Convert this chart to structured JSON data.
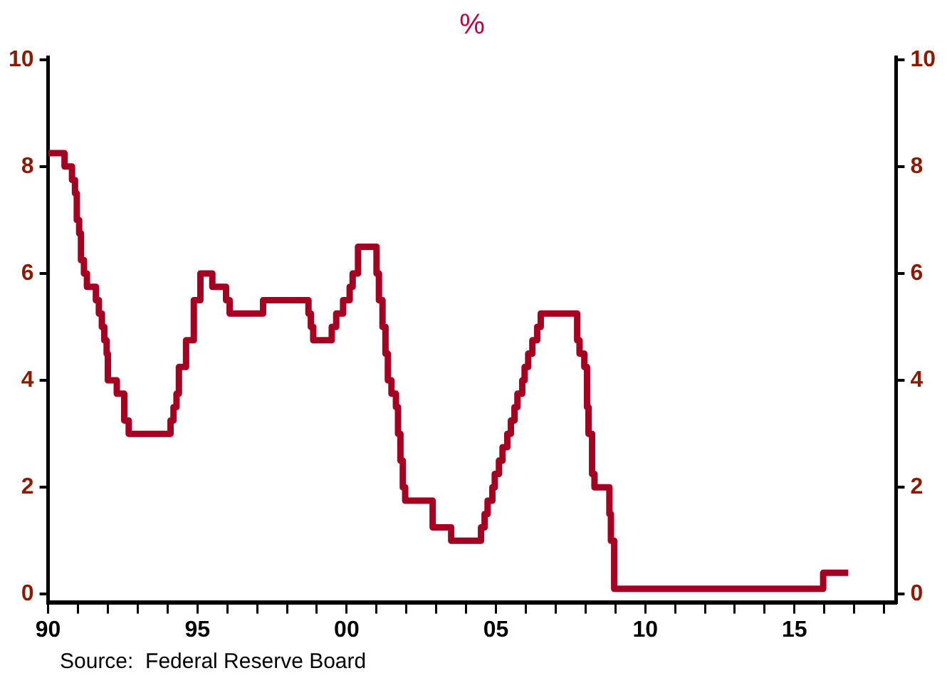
{
  "chart_data": {
    "type": "step",
    "title": "%",
    "x": [
      1990.0,
      1990.55,
      1990.8,
      1990.9,
      1990.96,
      1991.04,
      1991.1,
      1991.2,
      1991.3,
      1991.6,
      1991.7,
      1991.8,
      1991.88,
      1991.96,
      1992.0,
      1992.3,
      1992.55,
      1992.7,
      1994.1,
      1994.2,
      1994.3,
      1994.38,
      1994.62,
      1994.88,
      1995.1,
      1995.5,
      1995.96,
      1996.08,
      1997.2,
      1998.72,
      1998.8,
      1998.88,
      1999.5,
      1999.65,
      1999.88,
      2000.1,
      2000.2,
      2000.38,
      2001.0,
      2001.08,
      2001.2,
      2001.3,
      2001.38,
      2001.5,
      2001.65,
      2001.72,
      2001.8,
      2001.88,
      2001.96,
      2002.88,
      2003.5,
      2004.5,
      2004.62,
      2004.72,
      2004.88,
      2004.96,
      2005.1,
      2005.22,
      2005.38,
      2005.5,
      2005.62,
      2005.72,
      2005.88,
      2005.96,
      2006.08,
      2006.22,
      2006.38,
      2006.5,
      2007.72,
      2007.8,
      2007.96,
      2008.05,
      2008.1,
      2008.22,
      2008.3,
      2008.8,
      2008.85,
      2008.96,
      2015.96,
      2016.8
    ],
    "values": [
      8.25,
      8.0,
      7.75,
      7.5,
      7.0,
      6.75,
      6.25,
      6.0,
      5.75,
      5.5,
      5.25,
      5.0,
      4.75,
      4.5,
      4.0,
      3.75,
      3.25,
      3.0,
      3.25,
      3.5,
      3.75,
      4.25,
      4.75,
      5.5,
      6.0,
      5.75,
      5.5,
      5.25,
      5.5,
      5.25,
      5.0,
      4.75,
      5.0,
      5.25,
      5.5,
      5.75,
      6.0,
      6.5,
      6.0,
      5.5,
      5.0,
      4.5,
      4.0,
      3.75,
      3.5,
      3.0,
      2.5,
      2.0,
      1.75,
      1.25,
      1.0,
      1.25,
      1.5,
      1.75,
      2.0,
      2.25,
      2.5,
      2.75,
      3.0,
      3.25,
      3.5,
      3.75,
      4.0,
      4.25,
      4.5,
      4.75,
      5.0,
      5.25,
      4.75,
      4.5,
      4.25,
      3.5,
      3.0,
      2.25,
      2.0,
      1.5,
      1.0,
      0.1,
      0.4,
      0.4
    ],
    "color": "#a50021",
    "line_style": "solid",
    "xlim": [
      1990,
      2018.4
    ],
    "xticks": [
      {
        "value": 1990,
        "label": "90"
      },
      {
        "value": 1991,
        "label": null
      },
      {
        "value": 1992,
        "label": null
      },
      {
        "value": 1993,
        "label": null
      },
      {
        "value": 1994,
        "label": null
      },
      {
        "value": 1995,
        "label": "95"
      },
      {
        "value": 1996,
        "label": null
      },
      {
        "value": 1997,
        "label": null
      },
      {
        "value": 1998,
        "label": null
      },
      {
        "value": 1999,
        "label": null
      },
      {
        "value": 2000,
        "label": "00"
      },
      {
        "value": 2001,
        "label": null
      },
      {
        "value": 2002,
        "label": null
      },
      {
        "value": 2003,
        "label": null
      },
      {
        "value": 2004,
        "label": null
      },
      {
        "value": 2005,
        "label": "05"
      },
      {
        "value": 2006,
        "label": null
      },
      {
        "value": 2007,
        "label": null
      },
      {
        "value": 2008,
        "label": null
      },
      {
        "value": 2009,
        "label": null
      },
      {
        "value": 2010,
        "label": "10"
      },
      {
        "value": 2011,
        "label": null
      },
      {
        "value": 2012,
        "label": null
      },
      {
        "value": 2013,
        "label": null
      },
      {
        "value": 2014,
        "label": null
      },
      {
        "value": 2015,
        "label": "15"
      },
      {
        "value": 2016,
        "label": null
      },
      {
        "value": 2017,
        "label": null
      },
      {
        "value": 2018,
        "label": null
      }
    ],
    "ylim": [
      -0.15,
      10.05
    ],
    "yticks": [
      0,
      2,
      4,
      6,
      8,
      10
    ],
    "y2lim": [
      -0.15,
      10.05
    ],
    "y2ticks": [
      0,
      2,
      4,
      6,
      8,
      10
    ],
    "annotations": [
      "Source:  Federal Reserve Board"
    ]
  }
}
